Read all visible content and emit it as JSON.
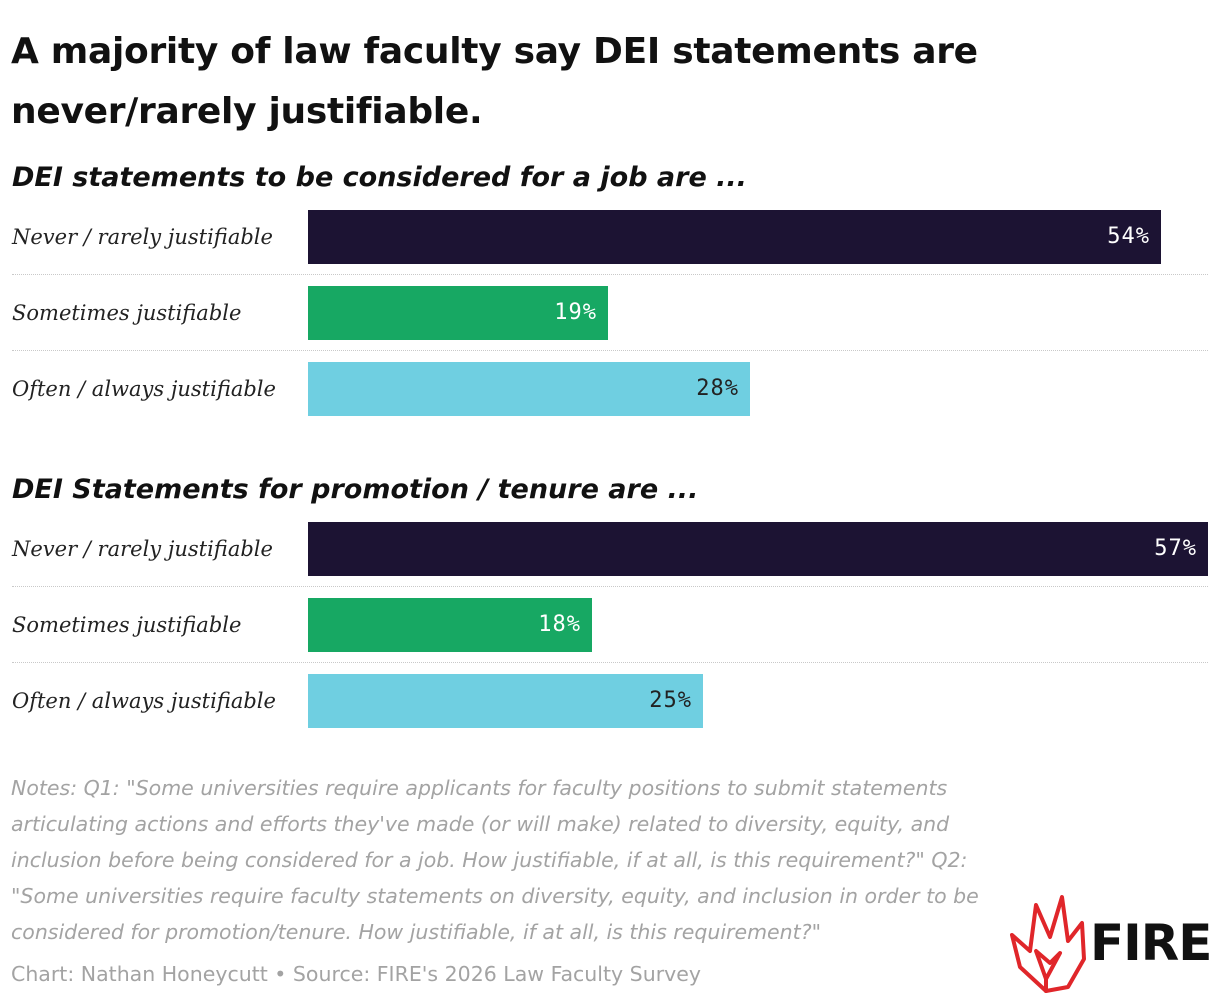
{
  "title": "A majority of law faculty say DEI statements are never/rarely justifiable.",
  "chart_data": [
    {
      "type": "bar",
      "title": "DEI statements to be considered for a job are ...",
      "categories": [
        "Never / rarely justifiable",
        "Sometimes justifiable",
        "Often / always justifiable"
      ],
      "values": [
        54,
        19,
        28
      ],
      "value_labels": [
        "54%",
        "19%",
        "28%"
      ],
      "colors": [
        "#1c1333",
        "#17a863",
        "#6fcfe1"
      ],
      "xlim": [
        0,
        57
      ]
    },
    {
      "type": "bar",
      "title": "DEI Statements for promotion / tenure are ...",
      "categories": [
        "Never / rarely justifiable",
        "Sometimes justifiable",
        "Often / always justifiable"
      ],
      "values": [
        57,
        18,
        25
      ],
      "value_labels": [
        "57%",
        "18%",
        "25%"
      ],
      "colors": [
        "#1c1333",
        "#17a863",
        "#6fcfe1"
      ],
      "xlim": [
        0,
        57
      ]
    }
  ],
  "notes": "Notes: Q1: \"Some universities require applicants for faculty positions to submit statements articulating actions and efforts they've made (or will make) related to diversity, equity, and inclusion before being considered for a job. How justifiable, if at all, is this requirement?\" Q2: \"Some universities require faculty statements on diversity, equity, and inclusion in order to be considered for promotion/tenure. How justifiable, if at all, is this requirement?\"",
  "credit": "Chart: Nathan Honeycutt • Source: FIRE's 2026 Law Faculty Survey",
  "logo": {
    "text": "FIRE",
    "icon": "flame-icon",
    "color": "#e0262a"
  }
}
